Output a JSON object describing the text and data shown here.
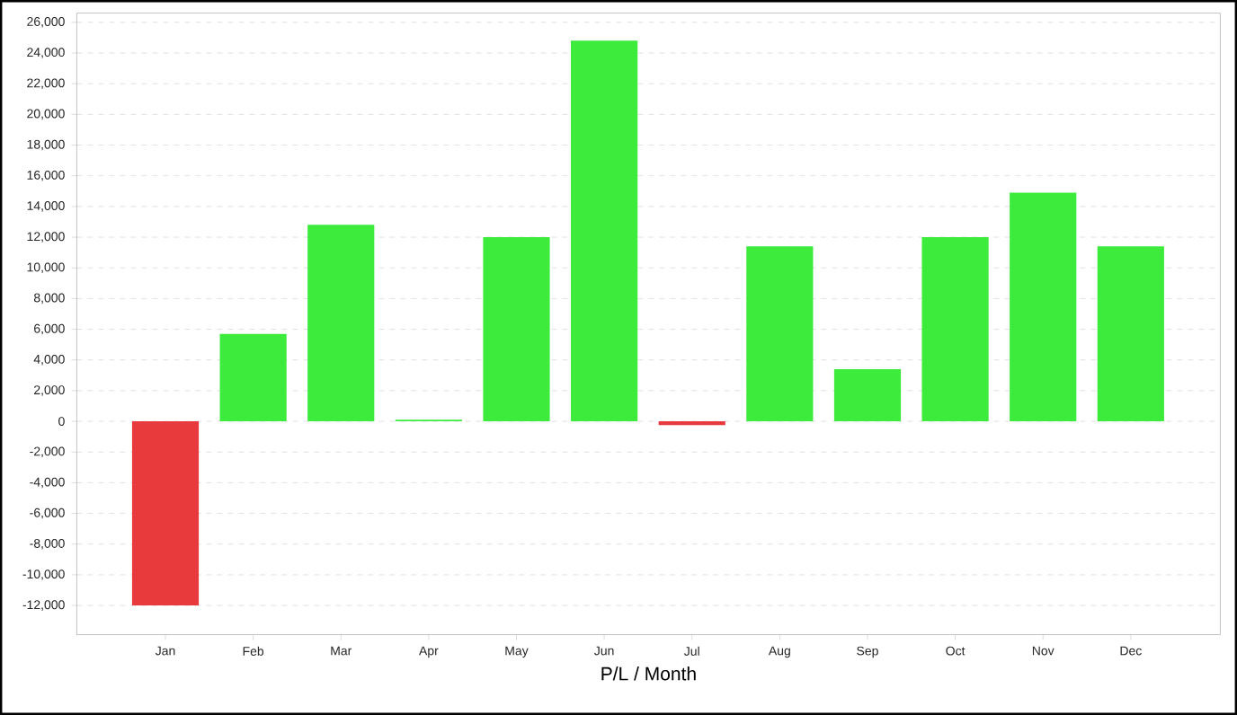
{
  "chart_data": {
    "type": "bar",
    "xlabel": "P/L / Month",
    "categories": [
      "Jan",
      "Feb",
      "Mar",
      "Apr",
      "May",
      "Jun",
      "Jul",
      "Aug",
      "Sep",
      "Oct",
      "Nov",
      "Dec"
    ],
    "values": [
      -12000,
      5700,
      12800,
      100,
      12000,
      24800,
      -250,
      11400,
      3400,
      12000,
      14900,
      11400
    ],
    "colors": [
      "#e8393d",
      "#3deb3d",
      "#3deb3d",
      "#3deb3d",
      "#3deb3d",
      "#3deb3d",
      "#e8393d",
      "#3deb3d",
      "#3deb3d",
      "#3deb3d",
      "#3deb3d",
      "#3deb3d"
    ],
    "ylim": [
      -13900,
      26600
    ],
    "yticks": [
      {
        "value": -12000,
        "label": "-12,000"
      },
      {
        "value": -10000,
        "label": "-10,000"
      },
      {
        "value": -8000,
        "label": "-8,000"
      },
      {
        "value": -6000,
        "label": "-6,000"
      },
      {
        "value": -4000,
        "label": "-4,000"
      },
      {
        "value": -2000,
        "label": "-2,000"
      },
      0,
      {
        "value": 2000,
        "label": "2,000"
      },
      {
        "value": 4000,
        "label": "4,000"
      },
      {
        "value": 6000,
        "label": "6,000"
      },
      {
        "value": 8000,
        "label": "8,000"
      },
      {
        "value": 10000,
        "label": "10,000"
      },
      {
        "value": 12000,
        "label": "12,000"
      },
      {
        "value": 14000,
        "label": "14,000"
      },
      {
        "value": 16000,
        "label": "16,000"
      },
      {
        "value": 18000,
        "label": "18,000"
      },
      {
        "value": 20000,
        "label": "20,000"
      },
      {
        "value": 22000,
        "label": "22,000"
      },
      {
        "value": 24000,
        "label": "24,000"
      },
      {
        "value": 26000,
        "label": "26,000"
      }
    ],
    "grid": "y"
  }
}
